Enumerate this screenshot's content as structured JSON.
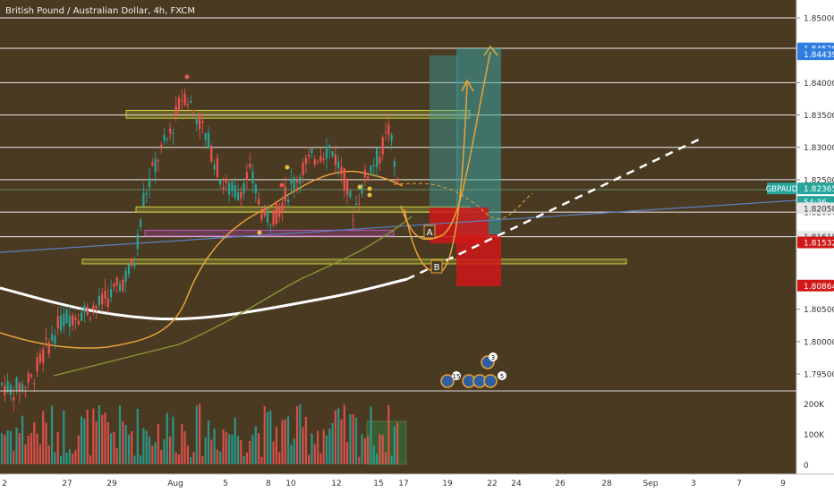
{
  "header": {
    "title": "British Pound / Australian Dollar, 4h, FXCM"
  },
  "colors": {
    "background": "#4a3a22",
    "axis_bg": "#ffffff",
    "candle_up": "#26a69a",
    "candle_down": "#ef5350",
    "white_line": "#ffffff",
    "ma_orange": "#e8a33a",
    "ma_olive": "#8a9a3a",
    "trend_blue": "#5a7fc0",
    "zone_yellow": "#c8d040",
    "zone_magenta": "#c050c0",
    "target_teal": "#3aa0a0",
    "stop_red": "#d01818",
    "price_label_bg": "#26a69a",
    "red_label_bg": "#d01818",
    "blue_label_bg": "#2f7de1"
  },
  "chart_data": {
    "type": "candlestick",
    "symbol": "GBPAUD",
    "interval": "4h",
    "ylim": [
      1.791,
      1.852
    ],
    "y_ticks": [
      "1.85000",
      "1.84000",
      "1.83500",
      "1.83000",
      "1.82500",
      "1.82000",
      "1.81500",
      "1.80500",
      "1.80000",
      "1.79500"
    ],
    "price_labels": [
      {
        "value": "1.84529",
        "style": "blue"
      },
      {
        "value": "1.84439",
        "style": "blue"
      },
      {
        "value": "1.82365",
        "style": "teal",
        "tag": "GBPAUD"
      },
      {
        "value": "54:36",
        "style": "teal_small"
      },
      {
        "value": "1.82058",
        "style": "gray"
      },
      {
        "value": "1.81618",
        "style": "gray"
      },
      {
        "value": "1.81532",
        "style": "red"
      },
      {
        "value": "1.80864",
        "style": "red"
      }
    ],
    "x_ticks": [
      "2",
      "27",
      "29",
      "Aug",
      "5",
      "8",
      "10",
      "12",
      "15",
      "17",
      "19",
      "22",
      "24",
      "26",
      "28",
      "Sep",
      "3",
      "7",
      "9"
    ],
    "horizontal_levels": [
      1.85,
      1.8453,
      1.84,
      1.835,
      1.83,
      1.825,
      1.82,
      1.8162
    ],
    "zones": [
      {
        "name": "upper-resistance",
        "from": 1.8345,
        "to": 1.8357
      },
      {
        "name": "mid-support",
        "from": 1.82,
        "to": 1.8208
      },
      {
        "name": "low-support",
        "from": 1.812,
        "to": 1.8127
      },
      {
        "name": "magenta-zone",
        "from": 1.8163,
        "to": 1.8172
      }
    ],
    "volume_ticks": [
      "200K",
      "100K",
      "0"
    ],
    "pattern_labels": [
      "A",
      "B"
    ],
    "event_badges": [
      "15",
      "3",
      "5"
    ]
  }
}
